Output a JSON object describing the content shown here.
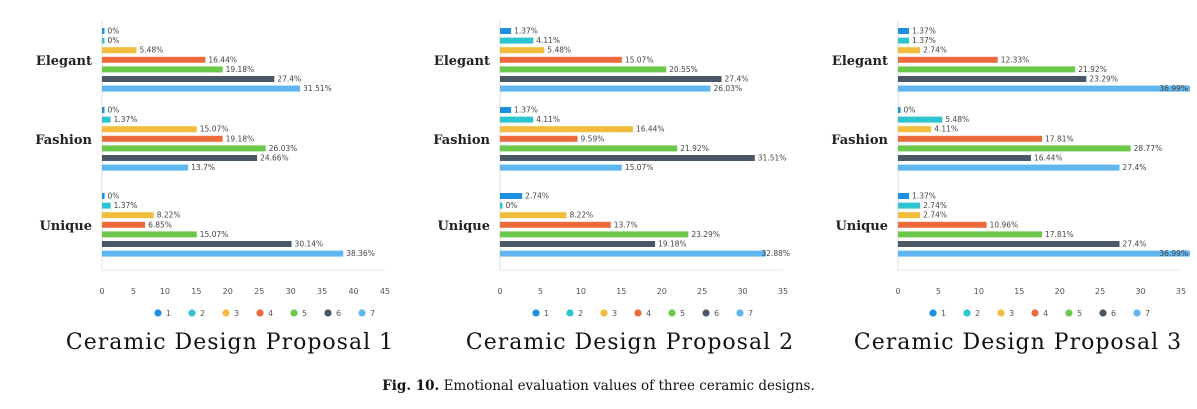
{
  "chart_data": [
    {
      "type": "bar",
      "orientation": "horizontal",
      "title": "Ceramic Design Proposal 1",
      "categories": [
        "Elegant",
        "Fashion",
        "Unique"
      ],
      "xlim": [
        0,
        45
      ],
      "xticks": [
        0,
        5,
        10,
        15,
        20,
        25,
        30,
        35,
        40,
        45
      ],
      "series": [
        {
          "name": "1",
          "values": [
            0,
            0,
            0
          ],
          "labels": [
            "0%",
            "0%",
            "0%"
          ]
        },
        {
          "name": "2",
          "values": [
            0,
            1.37,
            1.37
          ],
          "labels": [
            "0%",
            "1.37%",
            "1.37%"
          ]
        },
        {
          "name": "3",
          "values": [
            5.48,
            15.07,
            8.22
          ],
          "labels": [
            "5.48%",
            "15.07%",
            "8.22%"
          ]
        },
        {
          "name": "4",
          "values": [
            16.44,
            19.18,
            6.85
          ],
          "labels": [
            "16.44%",
            "19.18%",
            "6.85%"
          ]
        },
        {
          "name": "5",
          "values": [
            19.18,
            26.03,
            15.07
          ],
          "labels": [
            "19.18%",
            "26.03%",
            "15.07%"
          ]
        },
        {
          "name": "6",
          "values": [
            27.4,
            24.66,
            30.14
          ],
          "labels": [
            "27.4%",
            "24.66%",
            "30.14%"
          ]
        },
        {
          "name": "7",
          "values": [
            31.51,
            13.7,
            38.36
          ],
          "labels": [
            "31.51%",
            "13.7%",
            "38.36%"
          ]
        }
      ],
      "legend_position": "bottom",
      "grid": false
    },
    {
      "type": "bar",
      "orientation": "horizontal",
      "title": "Ceramic Design Proposal 2",
      "categories": [
        "Elegant",
        "Fashion",
        "Unique"
      ],
      "xlim": [
        0,
        35
      ],
      "xticks": [
        0,
        5,
        10,
        15,
        20,
        25,
        30,
        35
      ],
      "series": [
        {
          "name": "1",
          "values": [
            1.37,
            1.37,
            2.74
          ],
          "labels": [
            "1.37%",
            "1.37%",
            "2.74%"
          ]
        },
        {
          "name": "2",
          "values": [
            4.11,
            4.11,
            0
          ],
          "labels": [
            "4.11%",
            "4.11%",
            "0%"
          ]
        },
        {
          "name": "3",
          "values": [
            5.48,
            16.44,
            8.22
          ],
          "labels": [
            "5.48%",
            "16.44%",
            "8.22%"
          ]
        },
        {
          "name": "4",
          "values": [
            15.07,
            9.59,
            13.7
          ],
          "labels": [
            "15.07%",
            "9.59%",
            "13.7%"
          ]
        },
        {
          "name": "5",
          "values": [
            20.55,
            21.92,
            23.29
          ],
          "labels": [
            "20.55%",
            "21.92%",
            "23.29%"
          ]
        },
        {
          "name": "6",
          "values": [
            27.4,
            31.51,
            19.18
          ],
          "labels": [
            "27.4%",
            "31.51%",
            "19.18%"
          ]
        },
        {
          "name": "7",
          "values": [
            26.03,
            15.07,
            32.88
          ],
          "labels": [
            "26.03%",
            "15.07%",
            "32.88%"
          ]
        }
      ],
      "legend_position": "bottom",
      "grid": false
    },
    {
      "type": "bar",
      "orientation": "horizontal",
      "title": "Ceramic Design Proposal 3",
      "categories": [
        "Elegant",
        "Fashion",
        "Unique"
      ],
      "xlim": [
        0,
        35
      ],
      "xticks": [
        0,
        5,
        10,
        15,
        20,
        25,
        30,
        35
      ],
      "series": [
        {
          "name": "1",
          "values": [
            1.37,
            0,
            1.37
          ],
          "labels": [
            "1.37%",
            "0%",
            "1.37%"
          ]
        },
        {
          "name": "2",
          "values": [
            1.37,
            5.48,
            2.74
          ],
          "labels": [
            "1.37%",
            "5.48%",
            "2.74%"
          ]
        },
        {
          "name": "3",
          "values": [
            2.74,
            4.11,
            2.74
          ],
          "labels": [
            "2.74%",
            "4.11%",
            "2.74%"
          ]
        },
        {
          "name": "4",
          "values": [
            12.33,
            17.81,
            10.96
          ],
          "labels": [
            "12.33%",
            "17.81%",
            "10.96%"
          ]
        },
        {
          "name": "5",
          "values": [
            21.92,
            28.77,
            17.81
          ],
          "labels": [
            "21.92%",
            "28.77%",
            "17.81%"
          ]
        },
        {
          "name": "6",
          "values": [
            23.29,
            16.44,
            27.4
          ],
          "labels": [
            "23.29%",
            "16.44%",
            "27.4%"
          ]
        },
        {
          "name": "7",
          "values": [
            36.99,
            27.4,
            36.99
          ],
          "labels": [
            "36.99%",
            "27.4%",
            "36.99%"
          ]
        }
      ],
      "legend_position": "bottom",
      "grid": false
    }
  ],
  "colors": {
    "series": [
      "#1f8fe0",
      "#2ec4cf",
      "#f2bd3c",
      "#ec6a3c",
      "#6cc84a",
      "#4a5866",
      "#60b6ee"
    ],
    "axis": "#cccccc",
    "text": "#333333"
  },
  "caption": {
    "label": "Fig. 10.",
    "text": "Emotional evaluation values of three ceramic designs."
  }
}
